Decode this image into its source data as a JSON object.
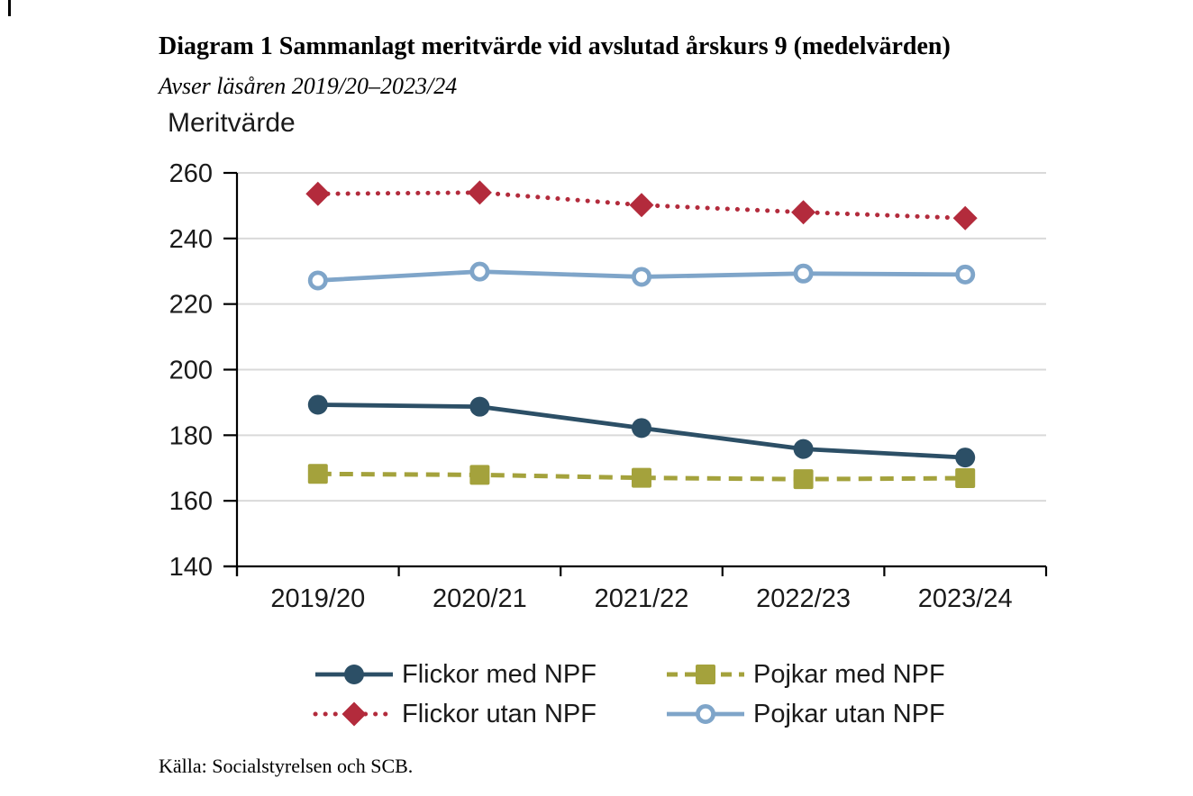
{
  "header": {
    "title": "Diagram 1 Sammanlagt meritvärde vid avslutad årskurs 9 (medelvärden)",
    "subtitle": "Avser läsåren 2019/20–2023/24"
  },
  "footer": {
    "source": "Källa: Socialstyrelsen och SCB."
  },
  "chart_data": {
    "type": "line",
    "title": "Diagram 1 Sammanlagt meritvärde vid avslutad årskurs 9 (medelvärden)",
    "subtitle": "Avser läsåren 2019/20–2023/24",
    "ylabel": "Meritvärde",
    "xlabel": "",
    "ylim": [
      140,
      260
    ],
    "yticks": [
      260,
      240,
      220,
      200,
      180,
      160,
      140
    ],
    "grid": true,
    "legend_position": "bottom",
    "categories": [
      "2019/20",
      "2020/21",
      "2021/22",
      "2022/23",
      "2023/24"
    ],
    "series": [
      {
        "name": "Flickor med NPF",
        "color": "#2C4F66",
        "line": "solid",
        "marker": "circle",
        "values": [
          189.3,
          188.7,
          182.2,
          175.8,
          173.2
        ]
      },
      {
        "name": "Pojkar med NPF",
        "color": "#A4A23C",
        "line": "dashed",
        "marker": "square",
        "values": [
          168.2,
          167.9,
          167.0,
          166.6,
          166.9
        ]
      },
      {
        "name": "Flickor utan NPF",
        "color": "#B32B3C",
        "line": "dotted",
        "marker": "diamond",
        "values": [
          253.6,
          254.0,
          250.2,
          248.0,
          246.2
        ]
      },
      {
        "name": "Pojkar utan NPF",
        "color": "#7FA5C9",
        "line": "solid",
        "marker": "open-circle",
        "values": [
          227.2,
          229.9,
          228.3,
          229.3,
          229.0
        ]
      }
    ],
    "colors": {
      "grid": "#D9D9D9",
      "axis": "#000000",
      "text": "#1a1a1a"
    },
    "source": "Källa: Socialstyrelsen och SCB."
  }
}
